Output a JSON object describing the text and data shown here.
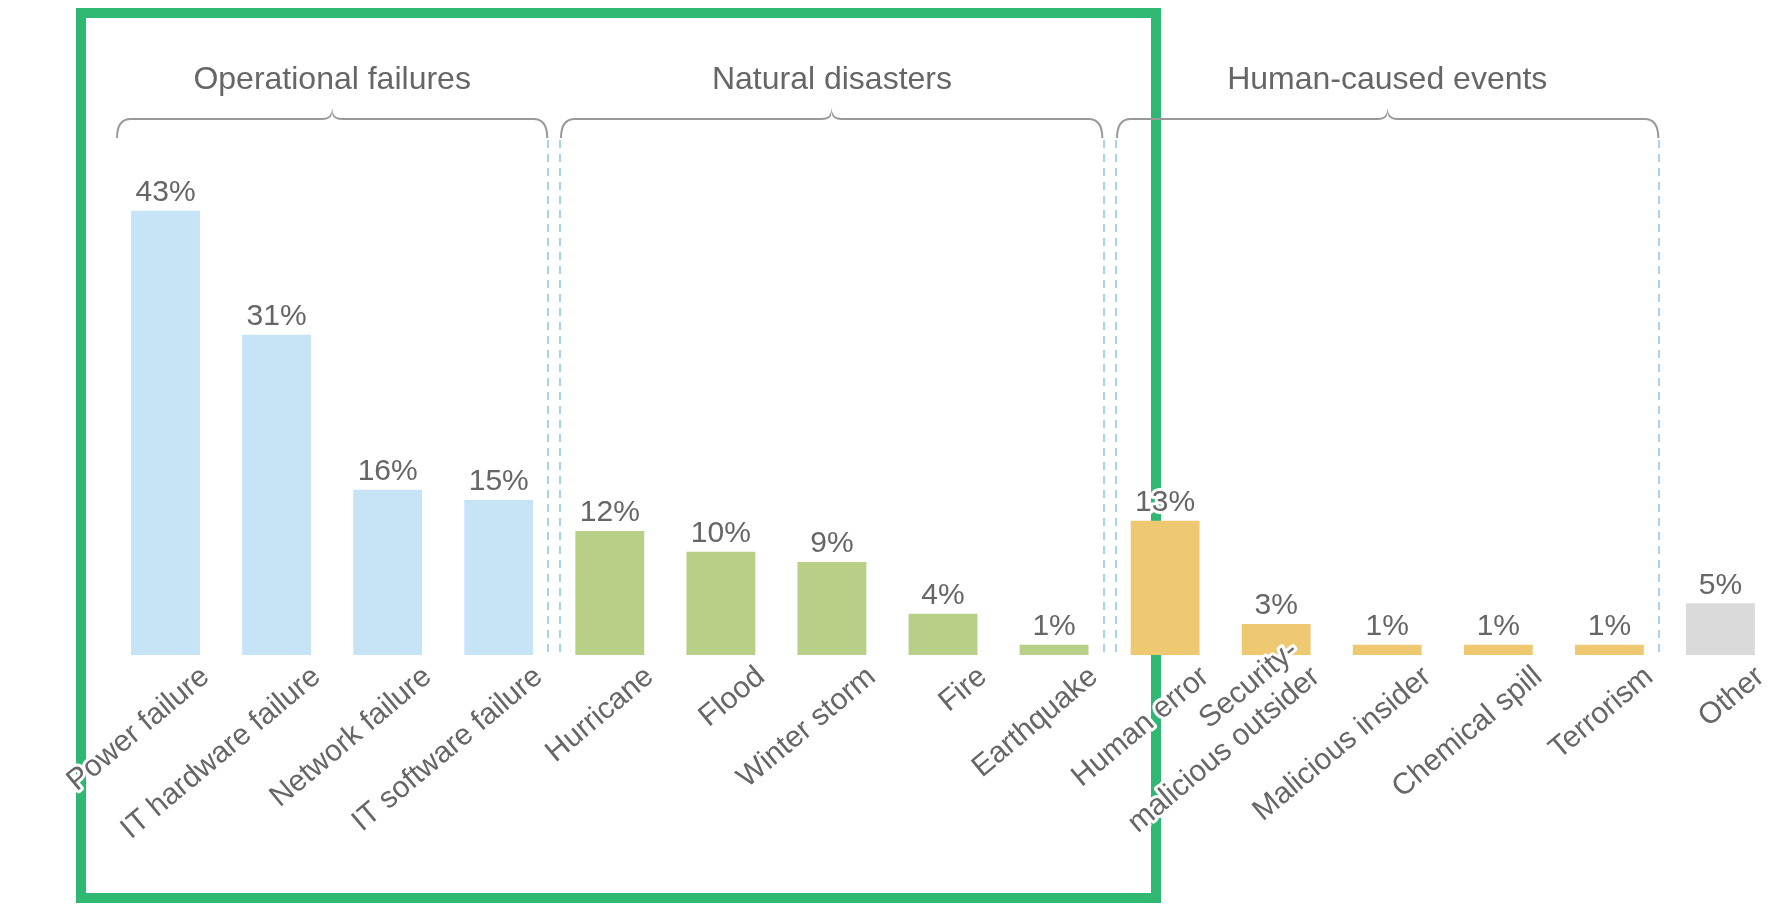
{
  "chart_data": {
    "type": "bar",
    "categories": [
      "Power failure",
      "IT hardware failure",
      "Network failure",
      "IT software failure",
      "Hurricane",
      "Flood",
      "Winter storm",
      "Fire",
      "Earthquake",
      "Human error",
      "Security-\nmalicious outsider",
      "Malicious insider",
      "Chemical spill",
      "Terrorism",
      "Other"
    ],
    "values": [
      43,
      31,
      16,
      15,
      12,
      10,
      9,
      4,
      1,
      13,
      3,
      1,
      1,
      1,
      5
    ],
    "value_labels": [
      "43%",
      "31%",
      "16%",
      "15%",
      "12%",
      "10%",
      "9%",
      "4%",
      "1%",
      "13%",
      "3%",
      "1%",
      "1%",
      "1%",
      "5%"
    ],
    "colors": [
      "#c7e4f7",
      "#c7e4f7",
      "#c7e4f7",
      "#c7e4f7",
      "#b8cf87",
      "#b8cf87",
      "#b8cf87",
      "#b8cf87",
      "#b8cf87",
      "#efc872",
      "#efc872",
      "#efc872",
      "#efc872",
      "#efc872",
      "#dadada"
    ],
    "annotations": [
      "Operational failures",
      "Natural disasters",
      "Human-caused events"
    ]
  }
}
